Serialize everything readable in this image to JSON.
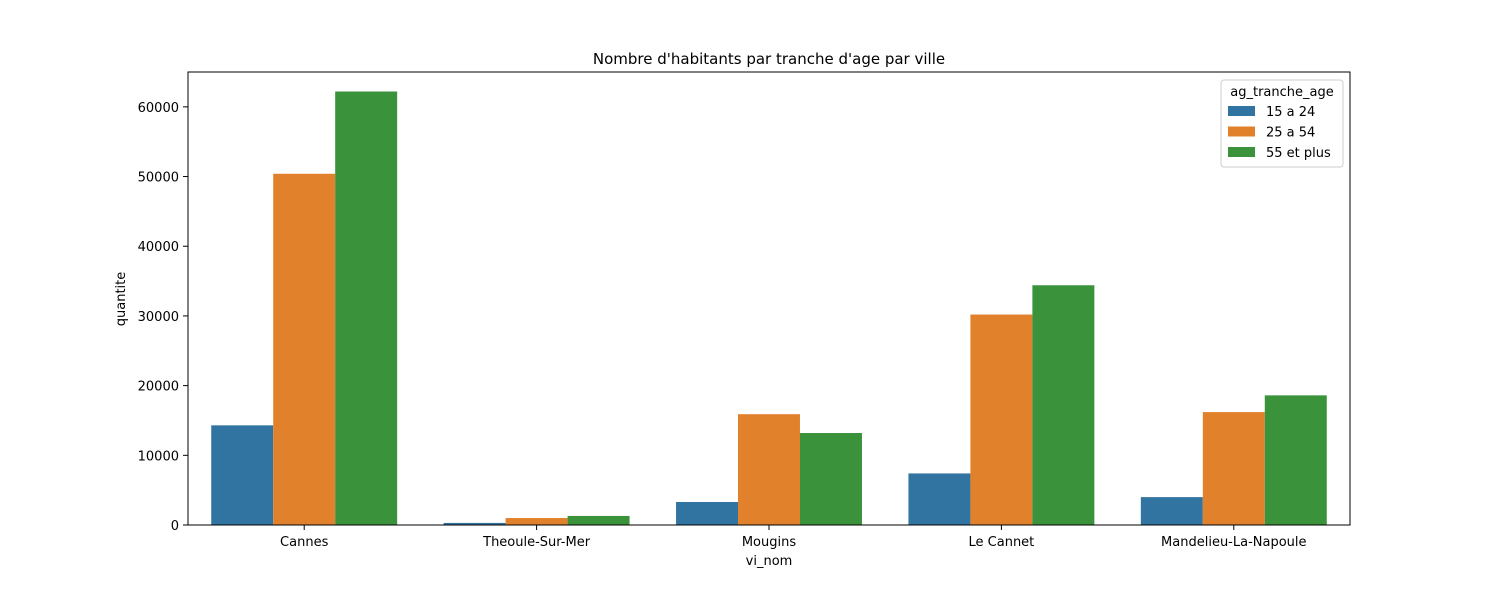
{
  "chart_data": {
    "type": "bar",
    "title": "Nombre d'habitants par tranche d'age par ville",
    "xlabel": "vi_nom",
    "ylabel": "quantite",
    "categories": [
      "Cannes",
      "Theoule-Sur-Mer",
      "Mougins",
      "Le Cannet",
      "Mandelieu-La-Napoule"
    ],
    "series": [
      {
        "name": "15 a 24",
        "color": "#3274a1",
        "values": [
          14300,
          300,
          3300,
          7400,
          4000
        ]
      },
      {
        "name": "25 a 54",
        "color": "#e1812c",
        "values": [
          50400,
          1000,
          15900,
          30200,
          16200
        ]
      },
      {
        "name": "55 et plus",
        "color": "#3a923a",
        "values": [
          62200,
          1300,
          13200,
          34400,
          18600
        ]
      }
    ],
    "ylim": [
      0,
      65000
    ],
    "yticks": [
      0,
      10000,
      20000,
      30000,
      40000,
      50000,
      60000
    ],
    "legend": {
      "title": "ag_tranche_age",
      "placement": "top-right"
    },
    "grid": false
  }
}
